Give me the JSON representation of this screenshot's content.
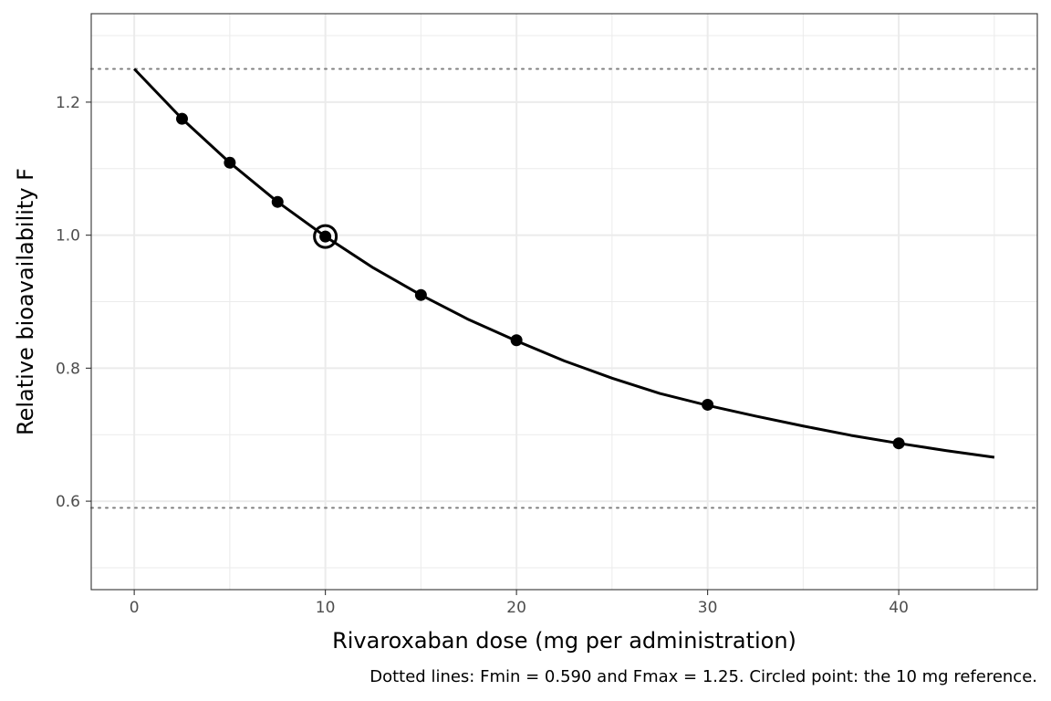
{
  "chart_data": {
    "type": "line",
    "xlabel": "Rivaroxaban dose (mg per administration)",
    "ylabel": "Relative bioavailability F",
    "caption": "Dotted lines: Fmin = 0.590 and Fmax = 1.25. Circled point: the 10 mg reference.",
    "xlim": [
      -2.25,
      47.25
    ],
    "ylim": [
      0.467,
      1.333
    ],
    "x_ticks": [
      0,
      10,
      20,
      30,
      40
    ],
    "y_ticks": [
      0.6,
      0.8,
      1.0,
      1.2
    ],
    "x_tick_labels": [
      "0",
      "10",
      "20",
      "30",
      "40"
    ],
    "y_tick_labels": [
      "0.6",
      "0.8",
      "1.0",
      "1.2"
    ],
    "grid": true,
    "reference_lines": [
      {
        "axis": "y",
        "value": 0.59,
        "style": "dotted"
      },
      {
        "axis": "y",
        "value": 1.25,
        "style": "dotted"
      }
    ],
    "curve": {
      "x": [
        0,
        2.5,
        5,
        7.5,
        10,
        12.5,
        15,
        17.5,
        20,
        22.5,
        25,
        27.5,
        30,
        32.5,
        35,
        37.5,
        40,
        42.5,
        45
      ],
      "y": [
        1.25,
        1.175,
        1.109,
        1.05,
        0.998,
        0.951,
        0.91,
        0.873,
        0.841,
        0.811,
        0.785,
        0.762,
        0.744,
        0.728,
        0.713,
        0.699,
        0.687,
        0.676,
        0.666
      ]
    },
    "points": {
      "x": [
        2.5,
        5,
        7.5,
        10,
        15,
        20,
        30,
        40
      ],
      "y": [
        1.175,
        1.109,
        1.05,
        0.998,
        0.91,
        0.842,
        0.745,
        0.687
      ]
    },
    "highlight_point": {
      "x": 10,
      "y": 0.998
    },
    "colors": {
      "line": "#000000",
      "points": "#000000",
      "reference": "#808080",
      "grid": "#ebebeb",
      "panel_border": "#333333"
    }
  }
}
